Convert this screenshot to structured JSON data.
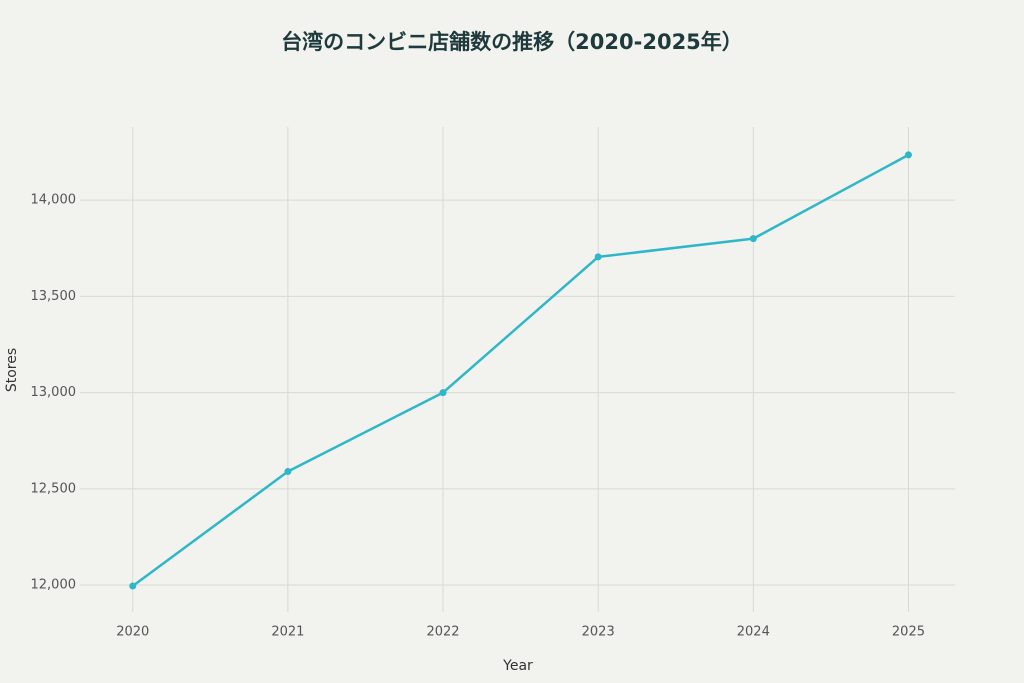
{
  "chart_data": {
    "type": "line",
    "title": "台湾のコンビニ店舗数の推移（2020-2025年）",
    "x_label": "Year",
    "y_label": "Stores",
    "x": [
      2020,
      2021,
      2022,
      2023,
      2024,
      2025
    ],
    "series": [
      {
        "name": "Stores",
        "color": "#2db7c9",
        "values": [
          11995,
          12590,
          13000,
          13705,
          13800,
          14235
        ]
      }
    ],
    "xlim": [
      2019.66,
      2025.3
    ],
    "xticks": [
      2020,
      2021,
      2022,
      2023,
      2024,
      2025
    ],
    "ylim": [
      11860,
      14380
    ],
    "yticks": [
      {
        "value": 12000,
        "label": "12,000"
      },
      {
        "value": 12500,
        "label": "12,500"
      },
      {
        "value": 13000,
        "label": "13,000"
      },
      {
        "value": 13500,
        "label": "13,500"
      },
      {
        "value": 14000,
        "label": "14,000"
      }
    ],
    "grid": true
  }
}
